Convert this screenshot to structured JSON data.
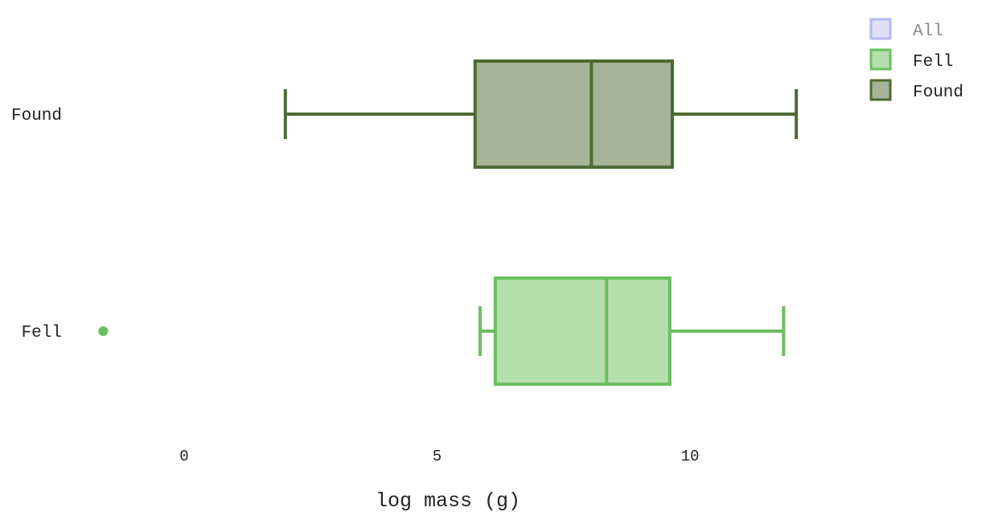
{
  "chart_data": {
    "type": "box",
    "orientation": "horizontal",
    "xlabel": "log mass (g)",
    "x_ticks": [
      0,
      5,
      10
    ],
    "xlim": [
      -3.6,
      13.2
    ],
    "categories": [
      "Found",
      "Fell"
    ],
    "series": [
      {
        "name": "Found",
        "category": "Found",
        "whisker_low": 2.0,
        "q1": 5.75,
        "median": 8.05,
        "q3": 9.65,
        "whisker_high": 12.1,
        "outliers": [],
        "stroke": "#4c6a33",
        "fill": "#a6b398"
      },
      {
        "name": "Fell",
        "category": "Fell",
        "whisker_low": 5.85,
        "q1": 6.15,
        "median": 8.35,
        "q3": 9.6,
        "whisker_high": 11.85,
        "outliers": [
          -1.6
        ],
        "stroke": "#6abf5e",
        "fill": "#b5dfac"
      }
    ],
    "grid": false,
    "legend_position": "top-right",
    "legend": [
      {
        "label": "All",
        "stroke": "#b3b8f0",
        "fill": "#dfe0f8",
        "dimmed": true
      },
      {
        "label": "Fell",
        "stroke": "#6abf5e",
        "fill": "#b5dfac",
        "dimmed": false
      },
      {
        "label": "Found",
        "stroke": "#4c6a33",
        "fill": "#a6b398",
        "dimmed": false
      }
    ]
  }
}
